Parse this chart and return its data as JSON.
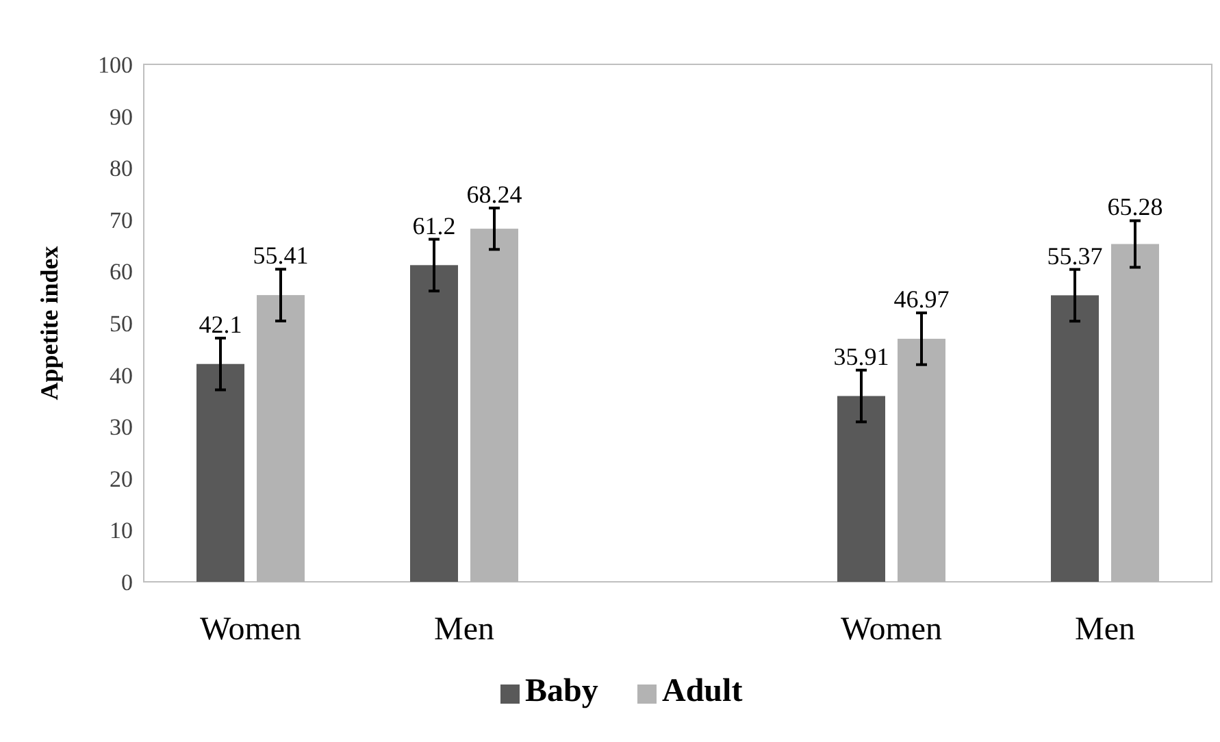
{
  "chart_data": {
    "type": "bar",
    "ylabel": "Appetite index",
    "categories": [
      "Women",
      "Men",
      null,
      "Women",
      "Men"
    ],
    "series": [
      {
        "name": "Baby",
        "color": "#595959",
        "values": [
          42.1,
          61.2,
          null,
          35.91,
          55.37
        ],
        "errors": [
          5,
          5,
          null,
          5,
          5
        ]
      },
      {
        "name": "Adult",
        "color": "#b3b3b3",
        "values": [
          55.41,
          68.24,
          null,
          46.97,
          65.28
        ],
        "errors": [
          5,
          4,
          null,
          5,
          4.5
        ]
      }
    ],
    "ylim": [
      0,
      100
    ],
    "yticks": [
      0,
      10,
      20,
      30,
      40,
      50,
      60,
      70,
      80,
      90,
      100
    ],
    "grid": false,
    "legend": "bottom",
    "data_labels": true
  }
}
